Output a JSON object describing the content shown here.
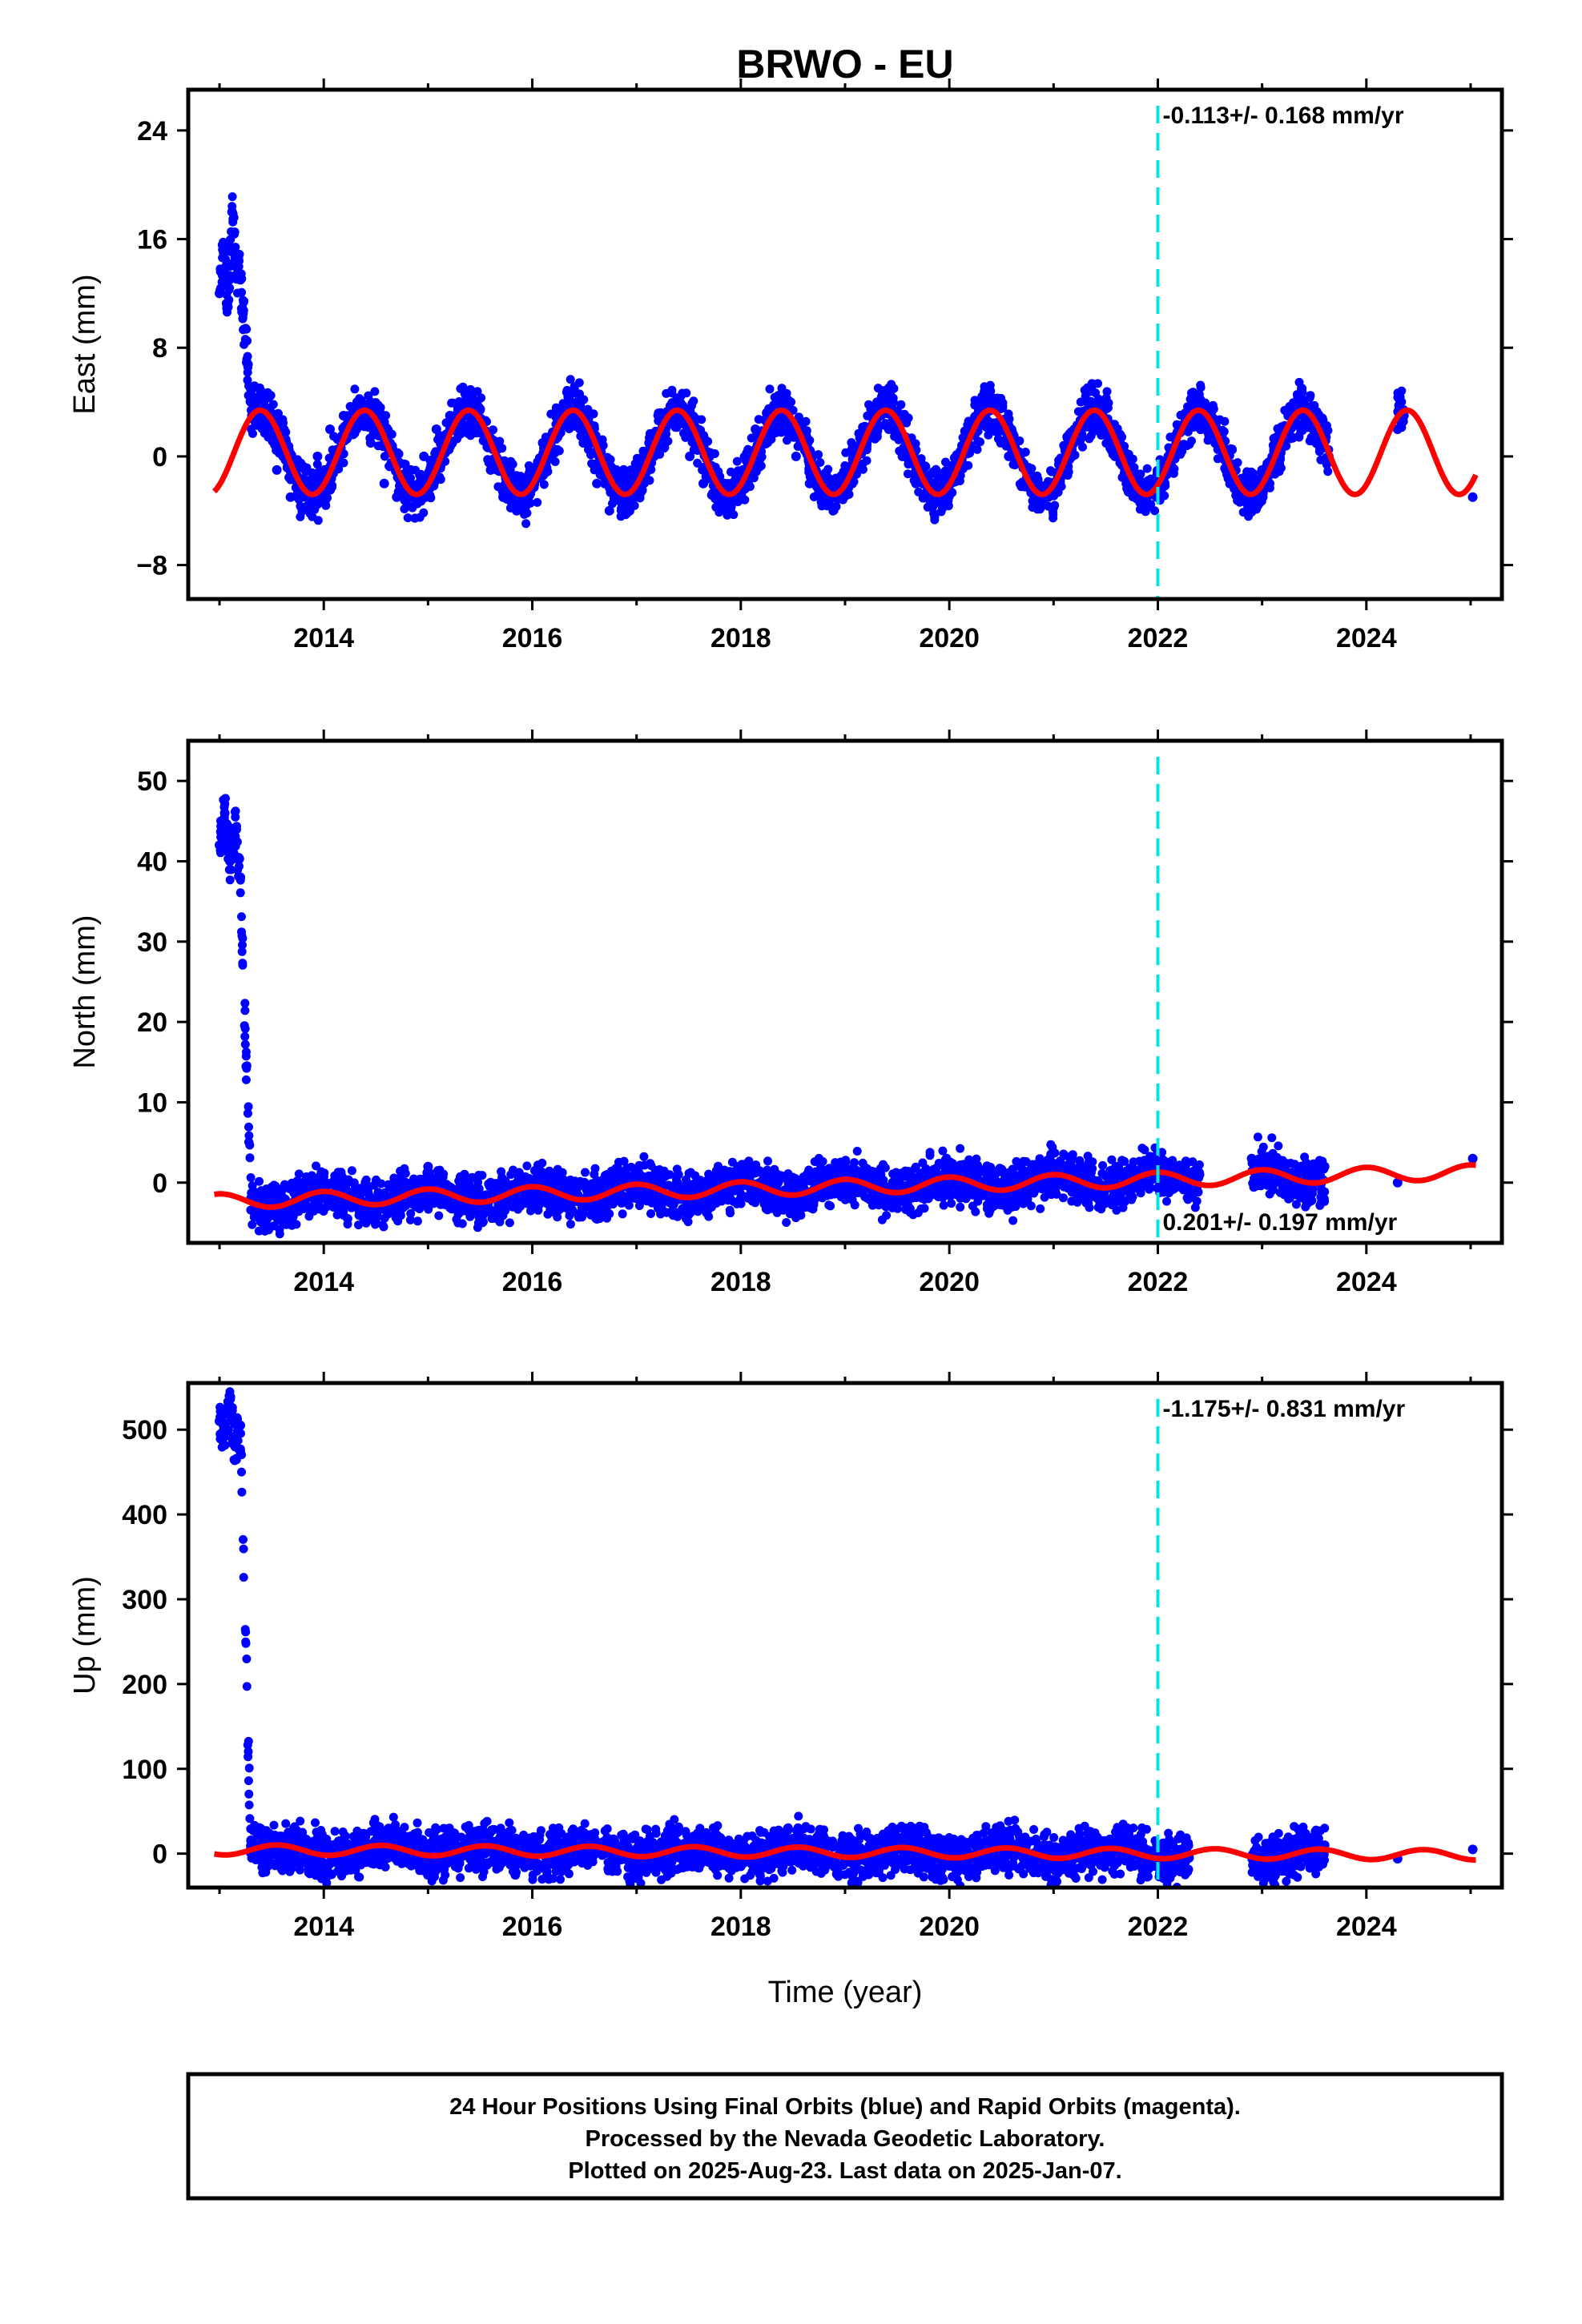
{
  "figure": {
    "title": "BRWO - EU",
    "xlabel": "Time (year)"
  },
  "footer": {
    "lines": [
      "24 Hour Positions Using Final Orbits (blue) and Rapid Orbits (magenta).",
      "Processed by the Nevada Geodetic Laboratory.",
      "Plotted on 2025-Aug-23. Last data on 2025-Jan-07."
    ]
  },
  "colors": {
    "points": "#0000ff",
    "model": "#ff0000",
    "event_line": "#00e5e5",
    "frame": "#000000"
  },
  "chart_data": [
    {
      "type": "scatter",
      "ylabel": "East (mm)",
      "rate_text": "-0.113+/- 0.168 mm/yr",
      "rate_position": "top-right",
      "xlim": [
        2012.7,
        2025.3
      ],
      "ylim": [
        -10.5,
        27
      ],
      "xticks": [
        2014,
        2016,
        2018,
        2020,
        2022,
        2024
      ],
      "yticks": [
        -8,
        0,
        8,
        16,
        24
      ],
      "grid": false,
      "event_line_x": 2022.0,
      "series": [
        {
          "role": "daily_positions",
          "color": "blue",
          "x": [
            2013.0,
            2013.04,
            2013.08,
            2013.12,
            2013.16,
            2013.2,
            2013.3,
            2013.42,
            2013.55,
            2013.68,
            2013.81,
            2013.94,
            2014.06,
            2014.19,
            2014.32,
            2014.45,
            2014.58,
            2014.7,
            2014.83,
            2014.96,
            2015.08,
            2015.21,
            2015.34,
            2015.47,
            2015.6,
            2015.72,
            2015.85,
            2015.98,
            2016.1,
            2016.23,
            2016.36,
            2016.49,
            2016.62,
            2016.74,
            2016.87,
            2017.0,
            2017.12,
            2017.25,
            2017.38,
            2017.51,
            2017.64,
            2017.76,
            2017.89,
            2018.02,
            2018.14,
            2018.27,
            2018.4,
            2018.53,
            2018.66,
            2018.78,
            2018.91,
            2019.04,
            2019.16,
            2019.29,
            2019.42,
            2019.55,
            2019.68,
            2019.8,
            2019.93,
            2020.06,
            2020.18,
            2020.31,
            2020.44,
            2020.57,
            2020.7,
            2020.82,
            2020.95,
            2021.08,
            2021.2,
            2021.33,
            2021.46,
            2021.59,
            2021.72,
            2021.84,
            2021.97,
            2022.1,
            2022.22,
            2022.35,
            2022.48,
            2022.9,
            2023.0,
            2023.25,
            2023.38,
            2023.51,
            2023.64,
            2024.3,
            2024.36,
            2025.02
          ],
          "y": [
            12,
            15,
            11,
            18,
            14,
            13,
            4,
            3,
            -1,
            -3,
            -2,
            0,
            2,
            3,
            4,
            1,
            -2,
            -3,
            -2,
            0,
            2,
            3,
            4,
            2,
            -1,
            -3,
            -4,
            -1,
            1,
            3,
            3,
            1,
            -2,
            -4,
            -3,
            -1,
            1,
            3,
            3,
            0,
            -2,
            -3,
            -3,
            -1,
            2,
            3,
            3,
            0,
            -2,
            -3,
            -3,
            -1,
            1,
            3,
            2,
            0,
            -2,
            -3,
            -3,
            -1,
            2,
            3,
            2,
            0,
            -2,
            -3,
            -3,
            -1,
            2,
            3,
            2,
            0,
            -2,
            -3,
            -2,
            0,
            2,
            4,
            3,
            -2,
            -1,
            3,
            5,
            3,
            0,
            2,
            3,
            -3
          ]
        },
        {
          "role": "model_fit",
          "color": "red",
          "amplitude": 3.1,
          "offset": 0.3,
          "phase_peak_year_fraction": 0.39
        }
      ]
    },
    {
      "type": "scatter",
      "ylabel": "North (mm)",
      "rate_text": "0.201+/- 0.197 mm/yr",
      "rate_position": "bottom-right",
      "xlim": [
        2012.7,
        2025.3
      ],
      "ylim": [
        -7.5,
        55
      ],
      "xticks": [
        2014,
        2016,
        2018,
        2020,
        2022,
        2024
      ],
      "yticks": [
        0,
        10,
        20,
        30,
        40,
        50
      ],
      "grid": false,
      "event_line_x": 2022.0,
      "series": [
        {
          "role": "daily_positions",
          "color": "blue",
          "x": [
            2013.0,
            2013.05,
            2013.1,
            2013.15,
            2013.2,
            2013.3,
            2013.5,
            2013.8,
            2014.1,
            2014.4,
            2014.7,
            2015.0,
            2015.3,
            2015.6,
            2015.9,
            2016.2,
            2016.5,
            2016.8,
            2017.1,
            2017.4,
            2017.7,
            2018.0,
            2018.3,
            2018.6,
            2018.9,
            2019.2,
            2019.5,
            2019.8,
            2020.1,
            2020.4,
            2020.7,
            2021.0,
            2021.3,
            2021.6,
            2021.9,
            2022.2,
            2022.4,
            2022.9,
            2023.3,
            2023.6,
            2024.3,
            2025.02
          ],
          "y": [
            42,
            46,
            40,
            44,
            38,
            -2,
            -1,
            0,
            -3,
            0,
            -1,
            2,
            -2,
            0,
            -1,
            -3,
            0,
            -1,
            -2,
            1,
            0,
            -2,
            1,
            0,
            -1,
            1,
            -1,
            1,
            0,
            1,
            1,
            -1,
            1,
            2,
            1,
            2,
            1,
            3,
            0,
            2,
            0,
            3
          ]
        },
        {
          "role": "model_fit",
          "color": "red",
          "amplitude": 0.9,
          "offset": -0.8,
          "rate_mm_per_yr": 0.3,
          "phase_peak_year_fraction": 0.0
        }
      ]
    },
    {
      "type": "scatter",
      "ylabel": "Up (mm)",
      "rate_text": "-1.175+/- 0.831 mm/yr",
      "rate_position": "top-right",
      "xlim": [
        2012.7,
        2025.3
      ],
      "ylim": [
        -40,
        555
      ],
      "xticks": [
        2014,
        2016,
        2018,
        2020,
        2022,
        2024
      ],
      "yticks": [
        0,
        100,
        200,
        300,
        400,
        500
      ],
      "grid": false,
      "event_line_x": 2022.0,
      "series": [
        {
          "role": "daily_positions",
          "color": "blue",
          "x": [
            2013.0,
            2013.05,
            2013.1,
            2013.15,
            2013.2,
            2013.3,
            2013.6,
            2013.9,
            2014.2,
            2014.6,
            2015.0,
            2015.4,
            2015.7,
            2016.0,
            2016.4,
            2016.8,
            2017.2,
            2017.6,
            2018.0,
            2018.4,
            2018.8,
            2019.2,
            2019.6,
            2020.0,
            2020.4,
            2020.8,
            2021.2,
            2021.6,
            2022.0,
            2022.3,
            2022.9,
            2023.3,
            2023.6,
            2024.3,
            2025.02
          ],
          "y": [
            510,
            500,
            520,
            480,
            505,
            5,
            15,
            0,
            5,
            12,
            0,
            2,
            15,
            -5,
            0,
            5,
            -8,
            2,
            -15,
            3,
            -8,
            -4,
            -2,
            -5,
            4,
            -3,
            2,
            4,
            -10,
            -5,
            -3,
            0,
            10,
            -6,
            5
          ]
        },
        {
          "role": "model_fit",
          "color": "red",
          "amplitude": 6,
          "offset": 2,
          "rate_mm_per_yr": -0.5,
          "phase_peak_year_fraction": 0.55
        }
      ]
    }
  ]
}
